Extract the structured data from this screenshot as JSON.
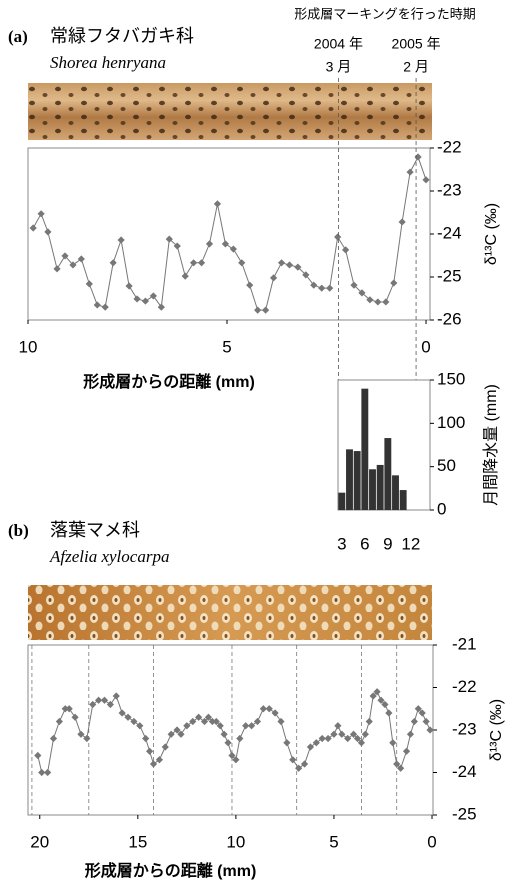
{
  "chart_data": [
    {
      "type": "line",
      "panel_label": "(a)",
      "title": "常緑フタバガキ科",
      "species": "Shorea henryana",
      "xlabel": "形成層からの距離 (mm)",
      "ylabel": "δ¹³C (‰)",
      "color": "#777777",
      "x": [
        9.87,
        9.67,
        9.5,
        9.27,
        9.07,
        8.87,
        8.66,
        8.46,
        8.26,
        8.06,
        7.86,
        7.66,
        7.46,
        7.26,
        7.05,
        6.85,
        6.65,
        6.45,
        6.25,
        6.05,
        5.84,
        5.64,
        5.44,
        5.24,
        5.04,
        4.84,
        4.63,
        4.43,
        4.23,
        4.03,
        3.83,
        3.63,
        3.43,
        3.22,
        3.02,
        2.82,
        2.62,
        2.42,
        2.22,
        2.02,
        1.81,
        1.61,
        1.41,
        1.21,
        1.01,
        0.81,
        0.6,
        0.4,
        0.2,
        0
      ],
      "values": [
        -23.86,
        -23.53,
        -23.95,
        -24.81,
        -24.51,
        -24.72,
        -24.58,
        -25.16,
        -25.65,
        -25.7,
        -24.67,
        -24.14,
        -25.21,
        -25.51,
        -25.56,
        -25.44,
        -25.7,
        -24.12,
        -24.28,
        -24.98,
        -24.67,
        -24.67,
        -24.23,
        -23.3,
        -24.23,
        -24.35,
        -24.67,
        -25.19,
        -25.77,
        -25.77,
        -25.02,
        -24.67,
        -24.72,
        -24.77,
        -24.95,
        -25.19,
        -25.26,
        -25.26,
        -24.07,
        -24.37,
        -25.19,
        -25.37,
        -25.53,
        -25.58,
        -25.58,
        -25.14,
        -23.72,
        -22.56,
        -22.21,
        -22.74
      ],
      "xlim": [
        10,
        -0.1
      ],
      "xticks": [
        10,
        5,
        0
      ],
      "ylim": [
        -26,
        -22
      ],
      "yticks": [
        -22,
        -23,
        -24,
        -25,
        -26
      ],
      "annotation_title": "形成層マーキングを行った時期",
      "markers": [
        {
          "label": "2004 年",
          "sublabel": "3 月",
          "x": 2.2
        },
        {
          "label": "2005 年",
          "sublabel": "2 月",
          "x": 0.25
        }
      ]
    },
    {
      "type": "bar",
      "ylabel": "月間降水量 (mm)",
      "color": "#333333",
      "categories": [
        "3",
        null,
        null,
        "6",
        null,
        null,
        "9",
        null,
        null,
        "12",
        null,
        null
      ],
      "values": [
        20,
        70,
        68,
        140,
        47,
        52,
        83,
        40,
        23,
        0,
        0,
        0
      ],
      "ylim": [
        0,
        150
      ],
      "yticks": [
        0,
        50,
        100,
        150
      ]
    },
    {
      "type": "line",
      "panel_label": "(b)",
      "title": "落葉マメ科",
      "species": "Afzelia xylocarpa",
      "xlabel": "形成層からの距離 (mm)",
      "ylabel": "δ¹³C (‰)",
      "color": "#777777",
      "x": [
        20.1,
        19.9,
        19.6,
        19.3,
        19.0,
        18.7,
        18.5,
        18.2,
        17.9,
        17.6,
        17.3,
        17.0,
        16.7,
        16.4,
        16.1,
        15.8,
        15.5,
        15.2,
        14.9,
        14.6,
        14.4,
        14.2,
        13.9,
        13.6,
        13.3,
        13.0,
        12.8,
        12.5,
        12.2,
        11.9,
        11.6,
        11.4,
        11.2,
        11.0,
        10.8,
        10.6,
        10.4,
        10.2,
        10.0,
        9.8,
        9.5,
        9.2,
        8.9,
        8.6,
        8.3,
        8.0,
        7.7,
        7.4,
        7.1,
        6.8,
        6.5,
        6.2,
        5.9,
        5.6,
        5.3,
        5.0,
        4.8,
        4.6,
        4.3,
        4.0,
        3.8,
        3.6,
        3.4,
        3.2,
        3.0,
        2.8,
        2.6,
        2.4,
        2.2,
        2.0,
        1.8,
        1.6,
        1.3,
        1.1,
        0.9,
        0.7,
        0.5,
        0.3,
        0.1
      ],
      "values": [
        -23.6,
        -24.0,
        -24.0,
        -23.2,
        -22.8,
        -22.5,
        -22.5,
        -22.7,
        -23.1,
        -23.2,
        -22.4,
        -22.3,
        -22.3,
        -22.4,
        -22.2,
        -22.6,
        -22.7,
        -22.8,
        -22.9,
        -23.2,
        -23.5,
        -23.8,
        -23.7,
        -23.4,
        -23.1,
        -23.0,
        -23.1,
        -22.9,
        -22.8,
        -22.7,
        -22.8,
        -22.7,
        -22.8,
        -22.8,
        -22.9,
        -23.1,
        -23.3,
        -23.6,
        -23.7,
        -23.2,
        -22.9,
        -22.9,
        -22.8,
        -22.5,
        -22.5,
        -22.6,
        -22.8,
        -23.3,
        -23.7,
        -23.9,
        -23.8,
        -23.4,
        -23.3,
        -23.2,
        -23.2,
        -23.1,
        -22.9,
        -23.1,
        -23.2,
        -23.1,
        -23.2,
        -23.3,
        -23.1,
        -22.8,
        -22.2,
        -22.1,
        -22.3,
        -22.4,
        -22.6,
        -23.3,
        -23.8,
        -23.9,
        -23.5,
        -23.1,
        -22.8,
        -22.5,
        -22.6,
        -22.8,
        -23.0
      ],
      "xlim": [
        20.6,
        -0.05
      ],
      "xticks": [
        20,
        15,
        10,
        5,
        0
      ],
      "ylim": [
        -25,
        -21
      ],
      "yticks": [
        -21,
        -22,
        -23,
        -24,
        -25
      ],
      "ring_boundaries": [
        20.4,
        17.5,
        14.2,
        10.2,
        6.9,
        3.6,
        1.8
      ]
    }
  ]
}
